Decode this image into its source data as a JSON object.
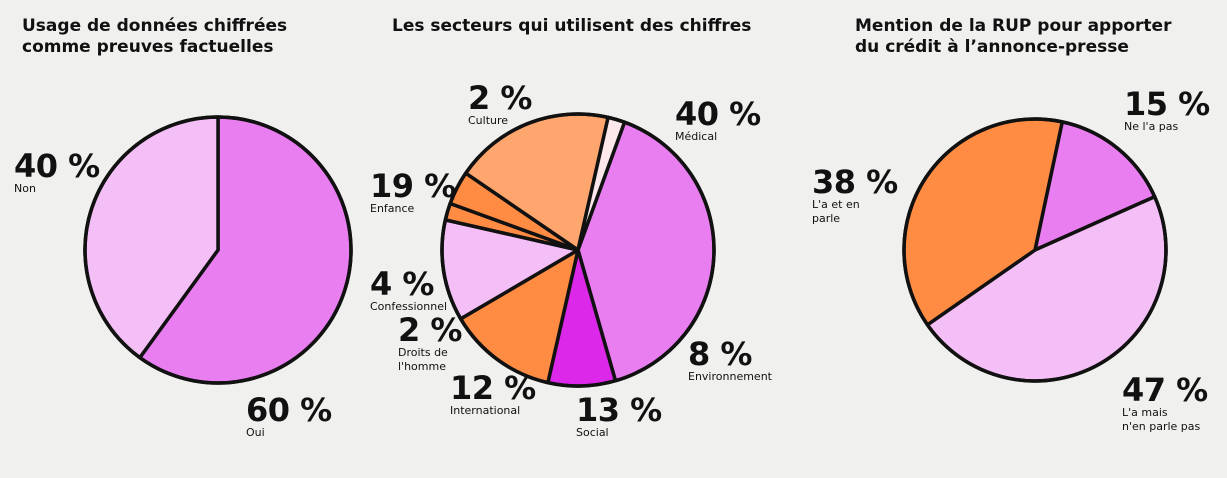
{
  "chart_data": [
    {
      "type": "pie",
      "title": "Usage de données chiffrées\ncomme preuves factuelles",
      "slices": [
        {
          "label": "Oui",
          "value": 60,
          "display": "60 %",
          "color": "#e97ef0"
        },
        {
          "label": "Non",
          "value": 40,
          "display": "40 %",
          "color": "#f4bff6"
        }
      ]
    },
    {
      "type": "pie",
      "title": "Les secteurs qui utilisent des chiffres",
      "slices": [
        {
          "label": "Médical",
          "value": 40,
          "display": "40 %",
          "color": "#e97ef0"
        },
        {
          "label": "Environnement",
          "value": 8,
          "display": "8 %",
          "color": "#dc28e8"
        },
        {
          "label": "Social",
          "value": 13,
          "display": "13 %",
          "color": "#ff8c42"
        },
        {
          "label": "International",
          "value": 12,
          "display": "12 %",
          "color": "#f4bff6"
        },
        {
          "label": "Droits de\nl'homme",
          "value": 2,
          "display": "2 %",
          "color": "#ff8c42"
        },
        {
          "label": "Confessionnel",
          "value": 4,
          "display": "4 %",
          "color": "#ff8c42"
        },
        {
          "label": "Enfance",
          "value": 19,
          "display": "19 %",
          "color": "#ffa56e"
        },
        {
          "label": "Culture",
          "value": 2,
          "display": "2 %",
          "color": "#fce8ea"
        }
      ]
    },
    {
      "type": "pie",
      "title": "Mention de la RUP pour apporter\ndu crédit à l’annonce-presse",
      "slices": [
        {
          "label": "Ne l'a pas",
          "value": 15,
          "display": "15 %",
          "color": "#e97ef0"
        },
        {
          "label": "L'a mais\nn'en parle pas",
          "value": 47,
          "display": "47 %",
          "color": "#f4bff6"
        },
        {
          "label": "L'a et en\nparle",
          "value": 38,
          "display": "38 %",
          "color": "#ff8c42"
        }
      ]
    }
  ]
}
